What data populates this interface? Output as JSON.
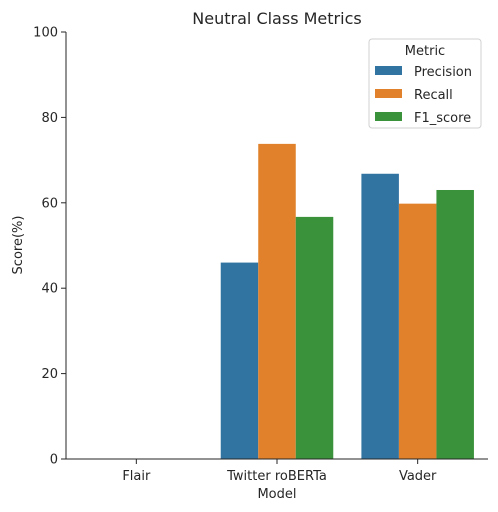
{
  "chart_data": {
    "type": "bar",
    "title": "Neutral Class Metrics",
    "xlabel": "Model",
    "ylabel": "Score(%)",
    "categories": [
      "Flair",
      "Twitter roBERTa",
      "Vader"
    ],
    "ylim": [
      0,
      100
    ],
    "yticks": [
      0,
      20,
      40,
      60,
      80,
      100
    ],
    "grid": false,
    "legend_title": "Metric",
    "legend_position": "top-right",
    "series": [
      {
        "name": "Precision",
        "color": "#3274a1",
        "values": [
          0,
          46.0,
          66.8
        ]
      },
      {
        "name": "Recall",
        "color": "#e1812c",
        "values": [
          0,
          73.8,
          59.8
        ]
      },
      {
        "name": "F1_score",
        "color": "#3a923a",
        "values": [
          0,
          56.7,
          63.0
        ]
      }
    ]
  }
}
